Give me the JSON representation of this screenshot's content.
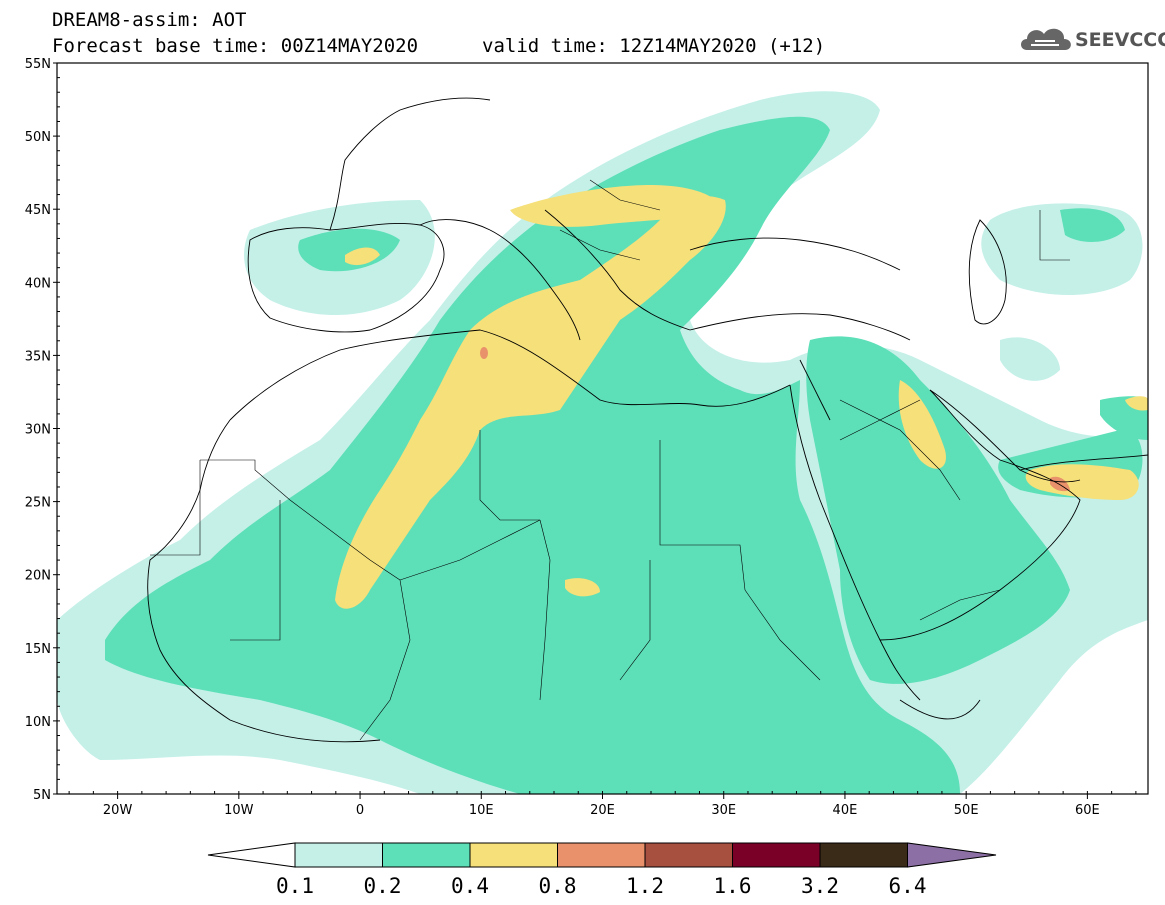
{
  "header": {
    "title": "DREAM8-assim: AOT",
    "base_time": "Forecast base time: 00Z14MAY2020",
    "valid_time": "valid time: 12Z14MAY2020 (+12)"
  },
  "logo": {
    "text": "SEEVCCC",
    "icon": "cloud-icon"
  },
  "map": {
    "lon_range": [
      -25,
      65
    ],
    "lat_range": [
      5,
      55
    ],
    "x_ticks": [
      "20W",
      "10W",
      "0",
      "10E",
      "20E",
      "30E",
      "40E",
      "50E",
      "60E"
    ],
    "y_ticks": [
      "55N",
      "50N",
      "45N",
      "40N",
      "35N",
      "30N",
      "25N",
      "20N",
      "15N",
      "10N",
      "5N"
    ]
  },
  "colorbar": {
    "labels": [
      "0.1",
      "0.2",
      "0.4",
      "0.8",
      "1.2",
      "1.6",
      "3.2",
      "6.4"
    ],
    "colors": [
      "#ffffff",
      "#c4f0e8",
      "#5ddfb8",
      "#f5e07a",
      "#e8916a",
      "#a85040",
      "#7a0028",
      "#3a2a18",
      "#8c6fa5"
    ]
  },
  "colors": {
    "aot_0_1": "#c4f0e8",
    "aot_0_2": "#5ddfb8",
    "aot_0_4": "#f5e07a",
    "aot_0_8": "#e8916a"
  }
}
